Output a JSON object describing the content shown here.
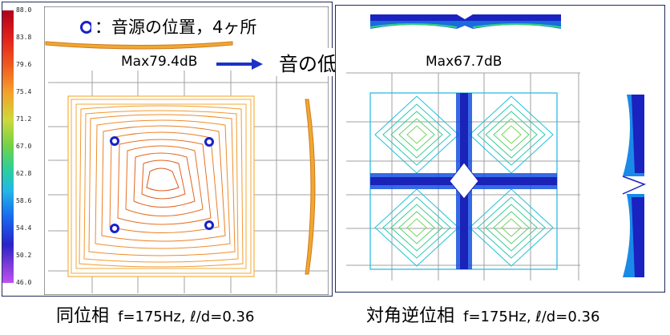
{
  "legend": {
    "marker_text": "：音源の位置，4ヶ所"
  },
  "flow": {
    "left_max": "Max79.4dB",
    "center": "音の低減",
    "right_max": "Max67.7dB",
    "arrow_color": "#1a32c8"
  },
  "scale": {
    "ticks": [
      "88.0",
      "83.8",
      "79.6",
      "75.4",
      "71.2",
      "67.0",
      "62.8",
      "58.6",
      "54.4",
      "50.2",
      "46.0"
    ],
    "colors": [
      "#c0001c",
      "#e8201e",
      "#f25a1e",
      "#f7a42a",
      "#c8d63a",
      "#6ad24a",
      "#2bd098",
      "#20b8e6",
      "#1666f0",
      "#2a22c8",
      "#7a3ad6",
      "#b44ef0"
    ]
  },
  "captions": {
    "left_main": "同位相",
    "left_param": "f=175Hz, ℓ/d=0.36",
    "right_main": "対角逆位相",
    "right_param": "f=175Hz, ℓ/d=0.36"
  }
}
